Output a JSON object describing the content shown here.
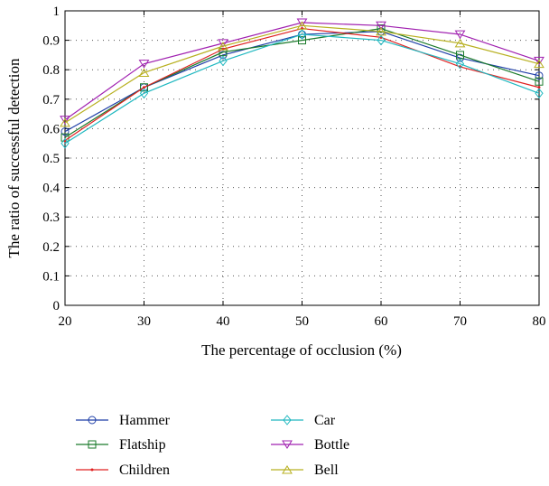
{
  "chart_data": {
    "type": "line",
    "title": "",
    "xlabel": "The percentage of occlusion (%)",
    "ylabel": "The ratio of successful detection",
    "x": [
      20,
      30,
      40,
      50,
      60,
      70,
      80
    ],
    "xlim": [
      20,
      80
    ],
    "ylim": [
      0,
      1
    ],
    "xticks": [
      "20",
      "30",
      "40",
      "50",
      "60",
      "70",
      "80"
    ],
    "yticks": [
      "0",
      "0.1",
      "0.2",
      "0.3",
      "0.4",
      "0.5",
      "0.6",
      "0.7",
      "0.8",
      "0.9",
      "1"
    ],
    "grid": "dotted",
    "legend_position": "below",
    "series": [
      {
        "name": "Hammer",
        "color": "#1f3fa8",
        "marker": "circle",
        "values": [
          0.59,
          0.74,
          0.85,
          0.92,
          0.93,
          0.84,
          0.78
        ]
      },
      {
        "name": "Flatship",
        "color": "#1a7a2a",
        "marker": "square",
        "values": [
          0.57,
          0.74,
          0.86,
          0.9,
          0.94,
          0.85,
          0.76
        ]
      },
      {
        "name": "Children",
        "color": "#e02020",
        "marker": "dot",
        "values": [
          0.56,
          0.74,
          0.87,
          0.94,
          0.91,
          0.81,
          0.74
        ]
      },
      {
        "name": "Car",
        "color": "#20b8c0",
        "marker": "diamond",
        "values": [
          0.55,
          0.72,
          0.83,
          0.92,
          0.9,
          0.82,
          0.72
        ]
      },
      {
        "name": "Bottle",
        "color": "#a020b0",
        "marker": "triangle-down",
        "values": [
          0.63,
          0.82,
          0.89,
          0.96,
          0.95,
          0.92,
          0.83
        ]
      },
      {
        "name": "Bell",
        "color": "#b8b020",
        "marker": "triangle-up",
        "values": [
          0.62,
          0.79,
          0.88,
          0.95,
          0.93,
          0.89,
          0.82
        ]
      }
    ]
  }
}
